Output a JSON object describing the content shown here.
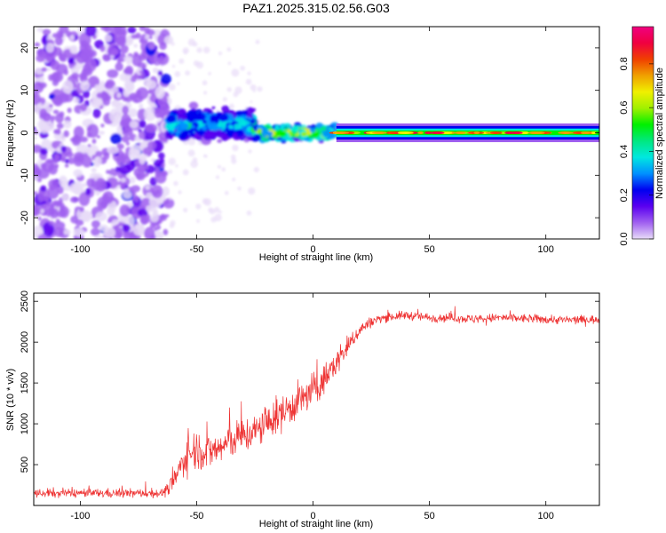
{
  "title": "PAZ1.2025.315.02.56.G03",
  "chart_data": [
    {
      "type": "heatmap",
      "name": "spectrogram",
      "xlabel": "Height of straight line (km)",
      "ylabel": "Frequency (Hz)",
      "xlim": [
        -120,
        123
      ],
      "ylim": [
        -25,
        25
      ],
      "xticks": [
        -100,
        -50,
        0,
        50,
        100
      ],
      "yticks": [
        -20,
        -10,
        0,
        10,
        20
      ],
      "colorbar": {
        "label": "Normalized spectral amplitude",
        "range": [
          0.0,
          0.97
        ],
        "ticks": [
          0.0,
          0.2,
          0.4,
          0.6,
          0.8
        ],
        "tick_labels": [
          "0.0",
          "0.2",
          "0.4",
          "0.6",
          "0.8"
        ],
        "colormap": [
          "#e8dcf8",
          "#a060f0",
          "#5a00f0",
          "#0000f0",
          "#0090ff",
          "#00e8e0",
          "#00e880",
          "#00f000",
          "#a0f000",
          "#f0f000",
          "#f0a000",
          "#f04000",
          "#f00040",
          "#f00080"
        ]
      },
      "description_regions": [
        {
          "x_range": [
            -120,
            -62
          ],
          "freq_spread": 25,
          "amplitude": 0.15
        },
        {
          "x_range": [
            -62,
            -25
          ],
          "freq_center": 2,
          "freq_spread": 5,
          "amplitude": 0.35
        },
        {
          "x_range": [
            -25,
            10
          ],
          "freq_center": 0,
          "freq_spread": 1.5,
          "amplitude": 0.6
        },
        {
          "x_range": [
            10,
            123
          ],
          "freq_center": 0,
          "freq_spread": 1.0,
          "amplitude": 0.85
        }
      ]
    },
    {
      "type": "line",
      "name": "snr",
      "xlabel": "Height of straight line (km)",
      "ylabel": "SNR (10 * v/v)",
      "xlim": [
        -120,
        123
      ],
      "ylim": [
        0,
        2600
      ],
      "xticks": [
        -100,
        -50,
        0,
        50,
        100
      ],
      "yticks": [
        500,
        1000,
        1500,
        2000,
        2500
      ],
      "color": "#ee3333",
      "series": [
        {
          "name": "SNR",
          "x": [
            -120,
            -100,
            -80,
            -65,
            -62,
            -58,
            -55,
            -50,
            -45,
            -40,
            -35,
            -30,
            -25,
            -20,
            -15,
            -10,
            -5,
            0,
            5,
            10,
            15,
            20,
            25,
            30,
            40,
            50,
            60,
            70,
            80,
            90,
            100,
            110,
            123
          ],
          "y": [
            150,
            150,
            150,
            150,
            200,
            400,
            600,
            700,
            650,
            700,
            800,
            850,
            900,
            1000,
            1100,
            1200,
            1300,
            1400,
            1550,
            1750,
            1950,
            2150,
            2250,
            2300,
            2330,
            2300,
            2300,
            2280,
            2300,
            2290,
            2280,
            2270,
            2280
          ],
          "noise": [
            100,
            100,
            100,
            100,
            150,
            300,
            400,
            450,
            400,
            400,
            400,
            400,
            400,
            400,
            400,
            400,
            400,
            400,
            350,
            300,
            250,
            150,
            120,
            100,
            100,
            100,
            100,
            100,
            100,
            100,
            100,
            100,
            100
          ]
        }
      ]
    }
  ]
}
